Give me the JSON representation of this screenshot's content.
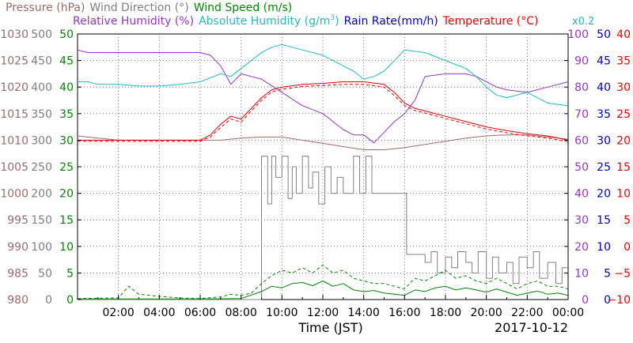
{
  "chart_data": {
    "type": "line",
    "title_rows": [
      [
        {
          "text": "Pressure (hPa)",
          "color": "#9b6b6b"
        },
        {
          "text": "Wind Direction (°)",
          "color": "#808080"
        },
        {
          "text": "Wind Speed (m/s)",
          "color": "#008800"
        }
      ],
      [
        {
          "text": "Relative Humidity (%)",
          "color": "#9933cc"
        },
        {
          "text": "Absolute Humidity (g/m",
          "sup": "3",
          "close": ")",
          "color": "#22bbbb"
        },
        {
          "text": "Rain Rate(mm/h)",
          "color": "#0000cc"
        },
        {
          "text": "Temperature (°C)",
          "color": "#ee0000"
        }
      ]
    ],
    "multiplier_note": "x0.2",
    "xlabel": "Time (JST)",
    "date": "2017-10-12",
    "xlim": [
      0,
      24
    ],
    "x_ticks": [
      "02:00",
      "04:00",
      "06:00",
      "08:00",
      "10:00",
      "12:00",
      "14:00",
      "16:00",
      "18:00",
      "20:00",
      "22:00",
      "00:00"
    ],
    "left_axes": [
      {
        "name": "Pressure",
        "color": "#9b6b6b",
        "ylim": [
          980,
          1030
        ],
        "ticks": [
          "1030",
          "1025",
          "1020",
          "1015",
          "1010",
          "1005",
          "1000",
          "995",
          "990",
          "985",
          "980"
        ]
      },
      {
        "name": "Wind Direction",
        "color": "#808080",
        "ylim": [
          0,
          500
        ],
        "ticks": [
          "500",
          "450",
          "400",
          "350",
          "300",
          "250",
          "200",
          "150",
          "100",
          "50",
          "0"
        ]
      },
      {
        "name": "Wind Speed",
        "color": "#008800",
        "ylim": [
          0,
          50
        ],
        "ticks": [
          "50",
          "45",
          "40",
          "35",
          "30",
          "25",
          "20",
          "15",
          "10",
          "5",
          "0"
        ]
      }
    ],
    "right_axes": [
      {
        "name": "Relative Humidity",
        "color": "#9933cc",
        "ylim": [
          0,
          100
        ],
        "ticks": [
          "100",
          "90",
          "80",
          "70",
          "60",
          "50",
          "40",
          "30",
          "20",
          "10",
          "0"
        ]
      },
      {
        "name": "Rain Rate",
        "color": "#0000cc",
        "ylim": [
          0,
          50
        ],
        "ticks": [
          "50",
          "45",
          "40",
          "35",
          "30",
          "25",
          "20",
          "15",
          "10",
          "5",
          "0"
        ]
      },
      {
        "name": "Temperature",
        "color": "#ee0000",
        "ylim": [
          -10,
          40
        ],
        "ticks": [
          "40",
          "35",
          "30",
          "25",
          "20",
          "15",
          "10",
          "5",
          "0",
          "−5",
          "−10"
        ]
      }
    ],
    "series": [
      {
        "name": "Pressure",
        "axis": "Pressure",
        "color": "#9b6b6b",
        "style": "solid",
        "x": [
          0,
          1,
          2,
          3,
          4,
          5,
          6,
          7,
          8,
          9,
          10,
          11,
          12,
          13,
          14,
          15,
          16,
          17,
          18,
          19,
          20,
          21,
          22,
          23,
          24
        ],
        "y": [
          1010.8,
          1010.4,
          1010.0,
          1010.0,
          1010.0,
          1010.0,
          1010.0,
          1010.0,
          1010.4,
          1010.6,
          1010.6,
          1010.0,
          1009.4,
          1008.8,
          1008.2,
          1008.2,
          1008.6,
          1009.2,
          1009.8,
          1010.4,
          1010.8,
          1011.0,
          1011.0,
          1010.6,
          1010.2
        ]
      },
      {
        "name": "Relative Humidity",
        "axis": "Relative Humidity",
        "color": "#9933cc",
        "style": "solid",
        "x": [
          0,
          0.5,
          1,
          2,
          3,
          4,
          5,
          6,
          6.5,
          7,
          7.5,
          8,
          8.5,
          9,
          10,
          11,
          12,
          12.5,
          13,
          13.5,
          14,
          14.5,
          15,
          15.5,
          16,
          16.5,
          17,
          18,
          19,
          19.5,
          20,
          20.5,
          21,
          22,
          23,
          24
        ],
        "y": [
          94,
          93,
          93,
          93,
          93,
          93,
          93,
          93,
          92,
          88,
          81,
          85,
          84,
          83,
          78,
          73,
          70,
          67,
          64,
          62,
          62,
          59,
          63,
          67,
          70,
          75,
          84,
          85,
          85,
          84,
          82,
          80,
          79,
          78,
          80,
          82
        ]
      },
      {
        "name": "Absolute Humidity",
        "axis": "Wind Speed",
        "color": "#22bbbb",
        "style": "solid",
        "x": [
          0,
          0.5,
          1,
          2,
          3,
          4,
          5,
          6,
          7,
          7.5,
          8,
          8.5,
          9,
          9.5,
          10,
          10.5,
          11,
          12,
          13,
          13.5,
          14,
          14.5,
          15,
          15.5,
          16,
          17,
          18,
          19,
          19.5,
          20,
          20.5,
          21,
          22,
          23,
          24
        ],
        "y": [
          41.0,
          41.0,
          40.5,
          40.5,
          40.2,
          40.2,
          40.5,
          41.0,
          42.5,
          42.0,
          43.5,
          45.0,
          46.5,
          47.5,
          48.0,
          47.5,
          47.0,
          46.0,
          44.0,
          43.0,
          41.5,
          42.0,
          43.0,
          45.0,
          47.0,
          46.5,
          45.0,
          43.5,
          42.0,
          40.0,
          38.5,
          38.0,
          39.0,
          37.0,
          36.5
        ]
      },
      {
        "name": "Temperature",
        "axis": "Temperature",
        "color": "#ee0000",
        "style": "solid",
        "x": [
          0,
          1,
          2,
          3,
          4,
          5,
          6,
          6.5,
          7,
          7.5,
          8,
          8.5,
          9,
          9.5,
          10,
          11,
          12,
          13,
          14,
          15,
          15.5,
          16,
          16.5,
          17,
          18,
          19,
          20,
          21,
          22,
          23,
          24
        ],
        "y": [
          20.0,
          20.0,
          20.0,
          20.0,
          20.0,
          20.0,
          20.0,
          21.0,
          23.0,
          24.5,
          24.0,
          26.0,
          28.0,
          29.5,
          30.0,
          30.5,
          30.7,
          31.0,
          31.0,
          30.5,
          29.0,
          27.0,
          26.0,
          25.5,
          24.5,
          23.5,
          22.5,
          21.8,
          21.2,
          20.8,
          20.0
        ]
      },
      {
        "name": "Temperature (dashed)",
        "axis": "Temperature",
        "color": "#ee0000",
        "style": "dashed",
        "x": [
          0,
          1,
          2,
          3,
          4,
          5,
          6,
          6.5,
          7,
          7.5,
          8,
          8.5,
          9,
          9.5,
          10,
          11,
          12,
          13,
          14,
          15,
          15.5,
          16,
          16.5,
          17,
          18,
          19,
          20,
          21,
          22,
          23,
          24
        ],
        "y": [
          19.8,
          19.8,
          19.8,
          19.8,
          19.8,
          19.8,
          19.8,
          20.6,
          22.4,
          24.0,
          23.4,
          25.5,
          27.5,
          29.1,
          29.6,
          30.1,
          30.3,
          30.5,
          30.5,
          30.0,
          28.4,
          26.5,
          25.6,
          25.1,
          24.1,
          23.1,
          22.1,
          21.4,
          20.8,
          20.4,
          19.7
        ]
      },
      {
        "name": "Wind Direction",
        "axis": "Wind Direction",
        "color": "#808080",
        "style": "solid",
        "x": [
          0,
          9,
          9,
          9.3,
          9.3,
          9.5,
          9.5,
          9.7,
          9.7,
          10,
          10,
          10.3,
          10.3,
          10.5,
          10.5,
          10.7,
          10.7,
          11,
          11,
          11.3,
          11.3,
          11.5,
          11.5,
          11.8,
          11.8,
          12.1,
          12.1,
          12.4,
          12.4,
          12.7,
          12.7,
          13,
          13,
          13.5,
          13.5,
          13.8,
          13.8,
          14.1,
          14.1,
          14.4,
          14.4,
          14.7,
          14.7,
          15,
          15,
          15.5,
          15.5,
          16,
          16,
          16.1,
          16.1,
          17,
          17,
          17.3,
          17.3,
          17.6,
          17.6,
          18,
          18,
          18.3,
          18.3,
          18.6,
          18.6,
          19,
          19,
          19.3,
          19.3,
          19.6,
          19.6,
          20,
          20,
          20.3,
          20.3,
          20.6,
          20.6,
          21,
          21,
          21.3,
          21.3,
          21.6,
          21.6,
          22,
          22,
          22.3,
          22.3,
          22.6,
          22.6,
          23,
          23,
          23.4,
          23.4,
          23.7,
          23.7,
          24
        ],
        "y": [
          0,
          0,
          270,
          270,
          180,
          180,
          270,
          270,
          230,
          230,
          270,
          270,
          190,
          190,
          250,
          250,
          200,
          200,
          270,
          270,
          210,
          210,
          240,
          240,
          180,
          180,
          250,
          250,
          200,
          200,
          230,
          230,
          200,
          200,
          270,
          270,
          200,
          200,
          270,
          270,
          200,
          200,
          200,
          200,
          200,
          200,
          200,
          200,
          200,
          200,
          85,
          85,
          70,
          70,
          90,
          90,
          50,
          50,
          80,
          80,
          60,
          60,
          90,
          90,
          70,
          70,
          50,
          50,
          90,
          90,
          40,
          40,
          80,
          80,
          50,
          50,
          70,
          70,
          30,
          30,
          80,
          80,
          60,
          60,
          90,
          90,
          40,
          40,
          70,
          70,
          30,
          30,
          60,
          60
        ]
      },
      {
        "name": "Wind Speed",
        "axis": "Wind Speed",
        "color": "#008800",
        "style": "solid",
        "x": [
          0,
          2,
          4,
          6,
          8,
          9,
          9.5,
          10,
          10.5,
          11,
          11.5,
          12,
          12.5,
          13,
          13.5,
          14,
          14.5,
          15,
          15.5,
          16,
          16.5,
          17,
          17.5,
          18,
          18.5,
          19,
          19.5,
          20,
          20.5,
          21,
          21.5,
          22,
          22.5,
          23,
          23.5,
          24
        ],
        "y": [
          0.1,
          0.1,
          0.1,
          0.1,
          0.2,
          1.5,
          2.5,
          2.2,
          3.0,
          3.2,
          2.6,
          3.5,
          2.5,
          3.0,
          1.8,
          1.5,
          1.7,
          1.2,
          1.0,
          0.8,
          1.8,
          1.5,
          2.2,
          2.5,
          1.8,
          2.2,
          1.8,
          1.4,
          2.0,
          1.4,
          0.8,
          1.2,
          1.6,
          1.0,
          1.2,
          0.8
        ]
      },
      {
        "name": "Wind Speed (gust)",
        "axis": "Wind Speed",
        "color": "#008800",
        "style": "dashed",
        "x": [
          0,
          2,
          2.5,
          3,
          4,
          5,
          6,
          7,
          7.5,
          8,
          8.5,
          9,
          9.5,
          10,
          10.5,
          11,
          11.5,
          12,
          12.5,
          13,
          13.5,
          14,
          14.5,
          15,
          15.5,
          16,
          16.5,
          17,
          17.5,
          18,
          18.5,
          19,
          19.5,
          20,
          20.5,
          21,
          21.5,
          22,
          22.5,
          23,
          23.5,
          24
        ],
        "y": [
          0.2,
          0.3,
          2.5,
          1.0,
          0.6,
          0.3,
          0.2,
          0.5,
          1.0,
          0.8,
          1.2,
          3.0,
          4.5,
          5.5,
          5.0,
          6.0,
          5.0,
          6.5,
          5.0,
          5.5,
          4.0,
          3.5,
          3.0,
          3.0,
          2.5,
          2.0,
          4.0,
          3.5,
          4.5,
          5.5,
          4.0,
          4.5,
          3.5,
          3.0,
          4.0,
          3.0,
          2.0,
          3.0,
          3.5,
          2.5,
          2.5,
          2.0
        ]
      }
    ]
  }
}
